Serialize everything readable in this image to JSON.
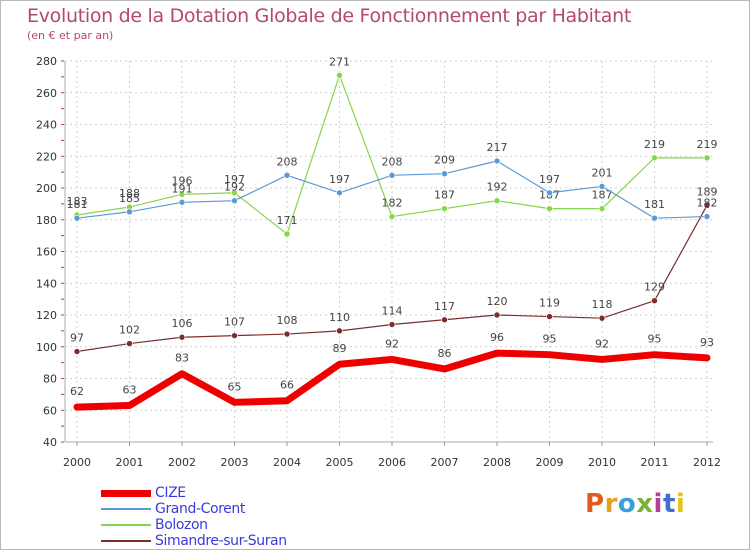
{
  "title": "Evolution de la Dotation Globale de Fonctionnement par Habitant",
  "subtitle": "(en € et par an)",
  "logo": {
    "text": "Proxiti",
    "colors": [
      "#e25b1b",
      "#e8a21a",
      "#35a2d8",
      "#7ab332",
      "#b33f96",
      "#3d6fcf",
      "#e8c21a"
    ]
  },
  "chart_data": {
    "type": "line",
    "title": "Evolution de la Dotation Globale de Fonctionnement par Habitant",
    "subtitle": "(en € et par an)",
    "xlabel": "",
    "ylabel": "",
    "ylim": [
      40,
      280
    ],
    "yticks": [
      40,
      60,
      80,
      100,
      120,
      140,
      160,
      180,
      200,
      220,
      240,
      260,
      280
    ],
    "grid": true,
    "legend_position": "bottom-left",
    "categories": [
      "2000",
      "2001",
      "2002",
      "2003",
      "2004",
      "2005",
      "2006",
      "2007",
      "2008",
      "2009",
      "2010",
      "2011",
      "2012"
    ],
    "series": [
      {
        "name": "Simandre-sur-Suran",
        "color": "#7b2d2d",
        "values": [
          97,
          102,
          106,
          107,
          108,
          110,
          114,
          117,
          120,
          119,
          118,
          129,
          189
        ]
      },
      {
        "name": "Bolozon",
        "color": "#84d64a",
        "values": [
          183,
          188,
          196,
          197,
          171,
          271,
          182,
          187,
          192,
          187,
          187,
          219,
          219
        ]
      },
      {
        "name": "Grand-Corent",
        "color": "#5b9bd5",
        "values": [
          181,
          185,
          191,
          192,
          208,
          197,
          208,
          209,
          217,
          197,
          201,
          181,
          182
        ]
      },
      {
        "name": "CIZE",
        "color": "#ee0000",
        "values": [
          62,
          63,
          83,
          65,
          66,
          89,
          92,
          86,
          96,
          95,
          92,
          95,
          93
        ]
      }
    ],
    "legend": [
      "CIZE",
      "Grand-Corent",
      "Bolozon",
      "Simandre-sur-Suran"
    ]
  }
}
